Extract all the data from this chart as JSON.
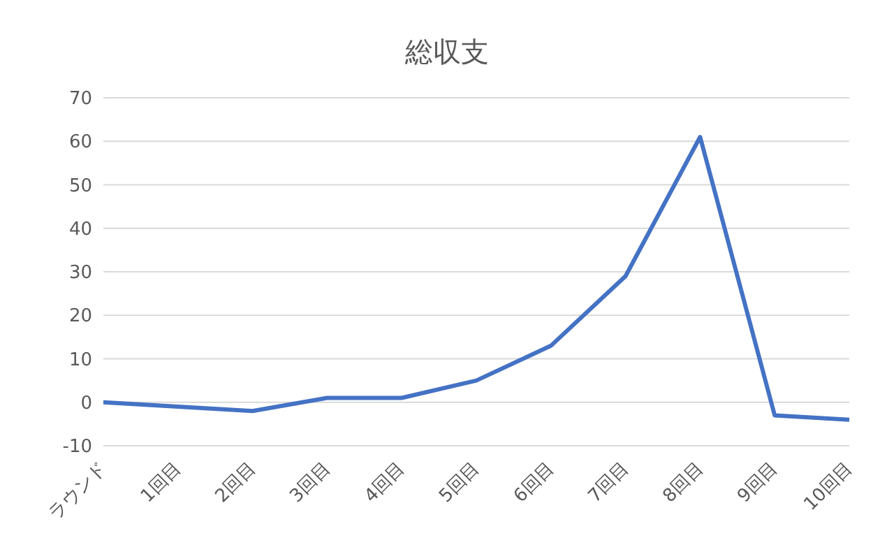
{
  "chart_data": {
    "type": "line",
    "title": "総収支",
    "categories": [
      "ラウンド",
      "1回目",
      "2回目",
      "3回目",
      "4回目",
      "5回目",
      "6回目",
      "7回目",
      "8回目",
      "9回目",
      "10回目"
    ],
    "series": [
      {
        "color": "#4472c4",
        "values": [
          0,
          -1,
          -2,
          1,
          1,
          5,
          13,
          29,
          61,
          -3,
          -4
        ]
      }
    ],
    "ylim": [
      -10,
      70
    ],
    "yticks": [
      -10,
      0,
      10,
      20,
      30,
      40,
      50,
      60,
      70
    ],
    "grid": "y",
    "legend": false,
    "marker": "none",
    "line_style": "solid"
  }
}
